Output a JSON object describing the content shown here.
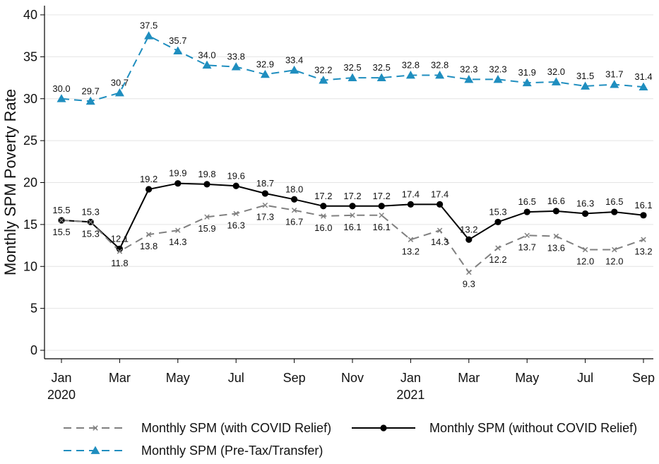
{
  "chart_data": {
    "type": "line",
    "ylabel": "Monthly SPM Poverty Rate",
    "ylim": [
      0,
      40
    ],
    "yticks": [
      0,
      5,
      10,
      15,
      20,
      25,
      30,
      35,
      40
    ],
    "x": [
      "2020-01",
      "2020-02",
      "2020-03",
      "2020-04",
      "2020-05",
      "2020-06",
      "2020-07",
      "2020-08",
      "2020-09",
      "2020-10",
      "2020-11",
      "2020-12",
      "2021-01",
      "2021-02",
      "2021-03",
      "2021-04",
      "2021-05",
      "2021-06",
      "2021-07",
      "2021-08",
      "2021-09"
    ],
    "xtick_labels": [
      {
        "x": "2020-01",
        "label": "Jan",
        "sublabel": "2020"
      },
      {
        "x": "2020-03",
        "label": "Mar",
        "sublabel": ""
      },
      {
        "x": "2020-05",
        "label": "May",
        "sublabel": ""
      },
      {
        "x": "2020-07",
        "label": "Jul",
        "sublabel": ""
      },
      {
        "x": "2020-09",
        "label": "Sep",
        "sublabel": ""
      },
      {
        "x": "2020-11",
        "label": "Nov",
        "sublabel": ""
      },
      {
        "x": "2021-01",
        "label": "Jan",
        "sublabel": "2021"
      },
      {
        "x": "2021-03",
        "label": "Mar",
        "sublabel": ""
      },
      {
        "x": "2021-05",
        "label": "May",
        "sublabel": ""
      },
      {
        "x": "2021-07",
        "label": "Jul",
        "sublabel": ""
      },
      {
        "x": "2021-09",
        "label": "Sep",
        "sublabel": ""
      }
    ],
    "grid": true,
    "legend_position": "bottom",
    "series": [
      {
        "key": "pretax",
        "name": "Monthly SPM (Pre-Tax/Transfer)",
        "color": "#1f8ebf",
        "line_style": "dashed",
        "marker": "triangle",
        "label_position": "above",
        "values": [
          30.0,
          29.7,
          30.7,
          37.5,
          35.7,
          34.0,
          33.8,
          32.9,
          33.4,
          32.2,
          32.5,
          32.5,
          32.8,
          32.8,
          32.3,
          32.3,
          31.9,
          32.0,
          31.5,
          31.7,
          31.4
        ],
        "labels": [
          "30.0",
          "29.7",
          "30.7",
          "37.5",
          "35.7",
          "34.0",
          "33.8",
          "32.9",
          "33.4",
          "32.2",
          "32.5",
          "32.5",
          "32.8",
          "32.8",
          "32.3",
          "32.3",
          "31.9",
          "32.0",
          "31.5",
          "31.7",
          "31.4"
        ]
      },
      {
        "key": "without",
        "name": "Monthly SPM (without COVID Relief)",
        "color": "#000000",
        "line_style": "solid",
        "marker": "circle",
        "label_position": "above",
        "values": [
          15.5,
          15.3,
          12.1,
          19.2,
          19.9,
          19.8,
          19.6,
          18.7,
          18.0,
          17.2,
          17.2,
          17.2,
          17.4,
          17.4,
          13.2,
          15.3,
          16.5,
          16.6,
          16.3,
          16.5,
          16.1
        ],
        "labels": [
          "15.5",
          "15.3",
          "12.1",
          "19.2",
          "19.9",
          "19.8",
          "19.6",
          "18.7",
          "18.0",
          "17.2",
          "17.2",
          "17.2",
          "17.4",
          "17.4",
          "13.2",
          "15.3",
          "16.5",
          "16.6",
          "16.3",
          "16.5",
          "16.1"
        ]
      },
      {
        "key": "with",
        "name": "Monthly SPM (with COVID Relief)",
        "color": "#808080",
        "line_style": "dashed",
        "marker": "x",
        "label_position": "below",
        "values": [
          15.5,
          15.3,
          11.8,
          13.8,
          14.3,
          15.9,
          16.3,
          17.3,
          16.7,
          16.0,
          16.1,
          16.1,
          13.2,
          14.3,
          9.3,
          12.2,
          13.7,
          13.6,
          12.0,
          12.0,
          13.2
        ],
        "labels": [
          "15.5",
          "15.3",
          "11.8",
          "13.8",
          "14.3",
          "15.9",
          "16.3",
          "17.3",
          "16.7",
          "16.0",
          "16.1",
          "16.1",
          "13.2",
          "14.3",
          "9.3",
          "12.2",
          "13.7",
          "13.6",
          "12.0",
          "12.0",
          "13.2"
        ]
      }
    ],
    "legend": [
      {
        "series": "with",
        "label": "Monthly SPM (with COVID Relief)"
      },
      {
        "series": "without",
        "label": "Monthly SPM (without COVID Relief)"
      },
      {
        "series": "pretax",
        "label": "Monthly SPM (Pre-Tax/Transfer)"
      }
    ]
  }
}
